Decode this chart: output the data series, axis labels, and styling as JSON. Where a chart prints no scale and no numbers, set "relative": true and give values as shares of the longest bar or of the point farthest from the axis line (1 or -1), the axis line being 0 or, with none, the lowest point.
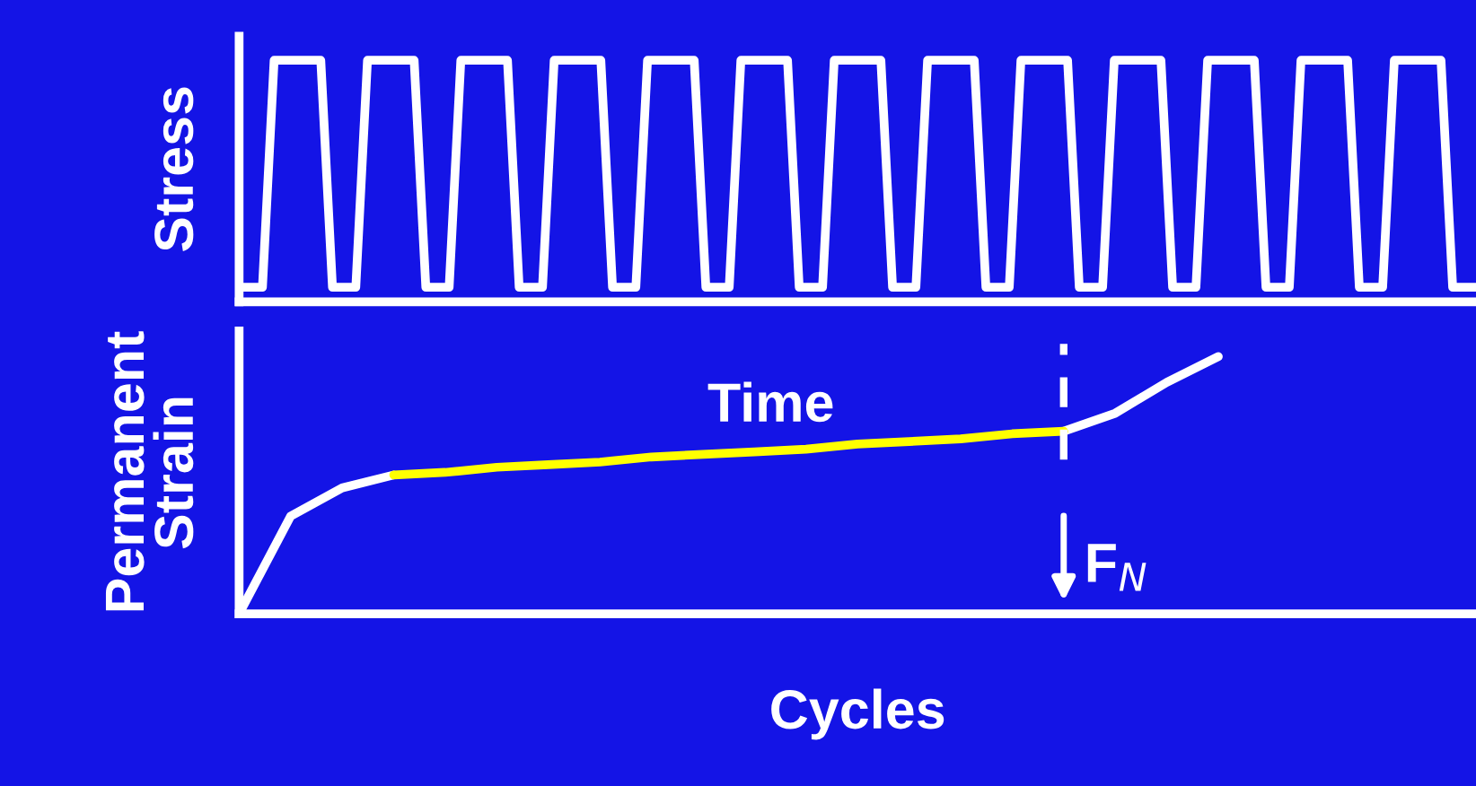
{
  "chart_data": [
    {
      "type": "line",
      "ylabel": "Stress",
      "relative": true,
      "categories": [
        null,
        null,
        null,
        null,
        null,
        null,
        null,
        null,
        null,
        null,
        null,
        null,
        null,
        null,
        null,
        null,
        null,
        null,
        null,
        null,
        null,
        null,
        null,
        null,
        null,
        null,
        null,
        null,
        null,
        null,
        null,
        null,
        null,
        null,
        null,
        null,
        null,
        null,
        null,
        null,
        null,
        null,
        null,
        null,
        null,
        null,
        null,
        null,
        null,
        null,
        null,
        null,
        null,
        null,
        null,
        null,
        null,
        null,
        null,
        null,
        null,
        null,
        null,
        null,
        null,
        null,
        null,
        null,
        null,
        null,
        null,
        null,
        null,
        null,
        null,
        null,
        null,
        null,
        null,
        null,
        null,
        null,
        null,
        null,
        null,
        null,
        null,
        null,
        null,
        null,
        null,
        null,
        null,
        null,
        null,
        null,
        null,
        null,
        null,
        null,
        null,
        null,
        null,
        null,
        null,
        null,
        null
      ],
      "series": [
        {
          "color": "#ffffff",
          "values": [
            0.06,
            0.06,
            0.06,
            1,
            1,
            1,
            1,
            1,
            0.06,
            0.06,
            0.06,
            1,
            1,
            1,
            1,
            1,
            0.06,
            0.06,
            0.06,
            1,
            1,
            1,
            1,
            1,
            0.06,
            0.06,
            0.06,
            1,
            1,
            1,
            1,
            1,
            0.06,
            0.06,
            0.06,
            1,
            1,
            1,
            1,
            1,
            0.06,
            0.06,
            0.06,
            1,
            1,
            1,
            1,
            1,
            0.06,
            0.06,
            0.06,
            1,
            1,
            1,
            1,
            1,
            0.06,
            0.06,
            0.06,
            1,
            1,
            1,
            1,
            1,
            0.06,
            0.06,
            0.06,
            1,
            1,
            1,
            1,
            1,
            0.06,
            0.06,
            0.06,
            1,
            1,
            1,
            1,
            1,
            0.06,
            0.06,
            0.06,
            1,
            1,
            1,
            1,
            1,
            0.06,
            0.06,
            0.06,
            1,
            1,
            1,
            1,
            1,
            0.06,
            0.06,
            0.06,
            1,
            1,
            1,
            1,
            1,
            0.06,
            0.06,
            0.06
          ]
        }
      ]
    },
    {
      "type": "line",
      "ylabel": "Permanent\nStrain",
      "xlabel": "Cycles",
      "relative": true,
      "annotations": [
        "Time",
        "F$_{N}$"
      ],
      "categories": [
        null,
        null,
        null,
        null,
        null,
        null,
        null,
        null,
        null,
        null,
        null,
        null,
        null,
        null,
        null,
        null,
        null,
        null,
        null,
        null,
        null,
        null,
        null,
        null,
        null
      ],
      "series": [
        {
          "color": "#ffffff",
          "values": [
            0,
            0.38,
            0.49,
            0.54,
            null,
            null,
            null,
            null,
            null,
            null,
            null,
            null,
            null,
            null,
            null,
            null,
            0.71,
            0.78,
            0.9,
            1,
            null,
            null,
            null,
            null,
            null
          ]
        },
        {
          "color": "#ffff00",
          "values": [
            null,
            null,
            null,
            0.54,
            0.55,
            0.57,
            0.58,
            0.59,
            0.61,
            0.62,
            0.63,
            0.64,
            0.66,
            0.67,
            0.68,
            0.7,
            0.71,
            null,
            null,
            null,
            null,
            null,
            null,
            null,
            null
          ]
        }
      ]
    }
  ]
}
